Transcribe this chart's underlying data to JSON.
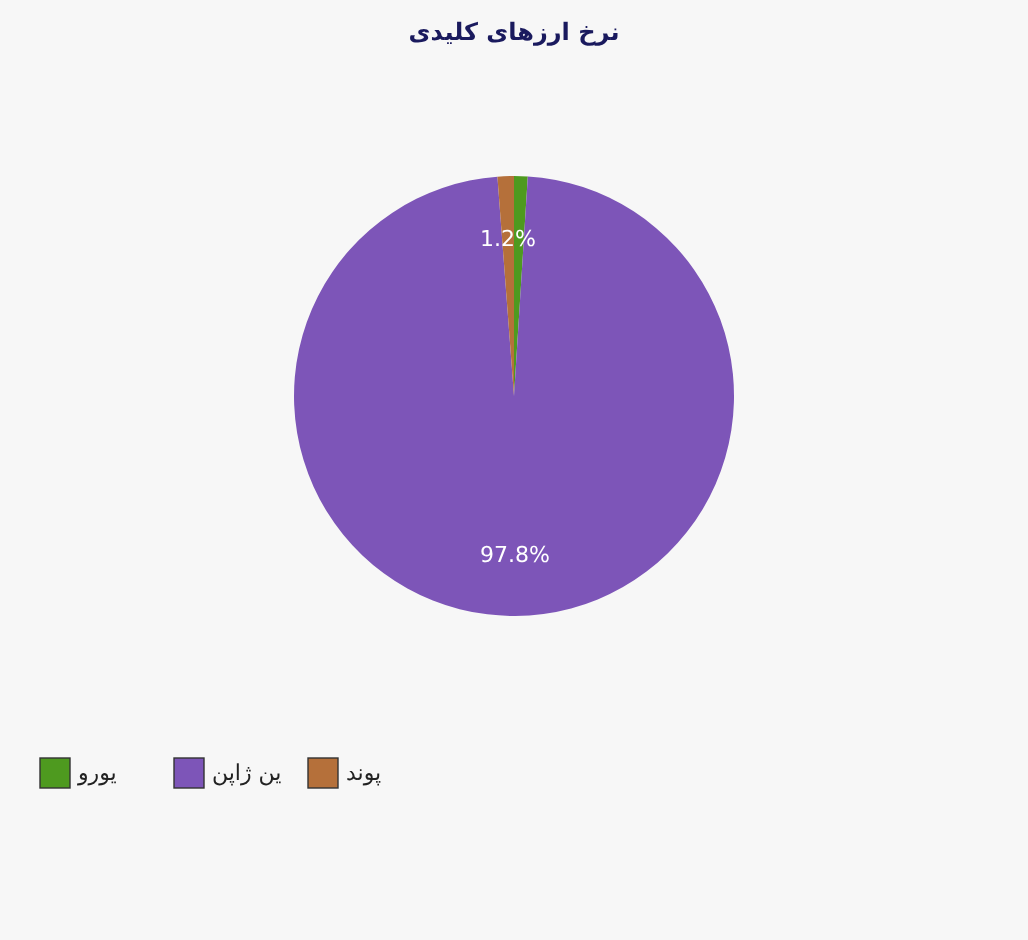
{
  "chart_data": {
    "type": "pie",
    "title": "نرخ ارزهای کلیدی",
    "categories": [
      "یورو",
      "ین ژاپن",
      "پوند"
    ],
    "values": [
      1.0,
      97.8,
      1.2
    ],
    "colors": [
      "#4e9a1f",
      "#7d55b8",
      "#b5703a"
    ],
    "value_labels": [
      null,
      "97.8%",
      "1.2%"
    ],
    "legend": "bottom left"
  }
}
